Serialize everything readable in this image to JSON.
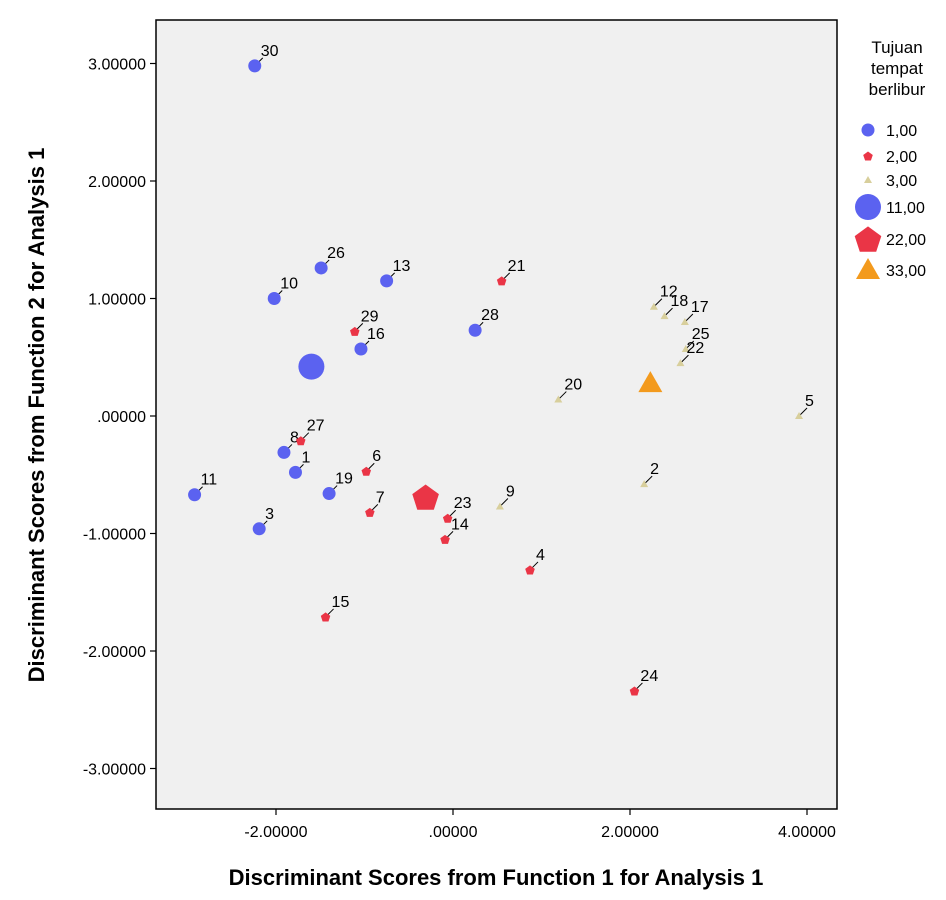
{
  "chart_data": {
    "type": "scatter",
    "xlabel": "Discriminant Scores from Function 1 for Analysis 1",
    "ylabel": "Discriminant Scores from Function 2 for Analysis 1",
    "xlim": [
      -3.4,
      4.3
    ],
    "ylim": [
      -3.3,
      3.4
    ],
    "xticks": [
      -2,
      0,
      2,
      4
    ],
    "xtick_labels": [
      "-2.00000",
      ".00000",
      "2.00000",
      "4.00000"
    ],
    "yticks": [
      3,
      2,
      1,
      0,
      -1,
      -2,
      -3
    ],
    "ytick_labels": [
      "3.00000",
      "2.00000",
      "1.00000",
      ".00000",
      "-1.00000",
      "-2.00000",
      "-3.00000"
    ],
    "legend": {
      "title": [
        "Tujuan",
        "tempat",
        "berlibur"
      ],
      "position": "right",
      "entries": [
        {
          "label": "1,00",
          "shape": "circle",
          "size": "small",
          "color": "#5b62f0"
        },
        {
          "label": "2,00",
          "shape": "pentagon",
          "size": "small",
          "color": "#ea3546"
        },
        {
          "label": "3,00",
          "shape": "triangle",
          "size": "small",
          "color": "#d8cf9c"
        },
        {
          "label": "11,00",
          "shape": "circle",
          "size": "large",
          "color": "#5b62f0"
        },
        {
          "label": "22,00",
          "shape": "pentagon",
          "size": "large",
          "color": "#ea3546"
        },
        {
          "label": "33,00",
          "shape": "triangle",
          "size": "large",
          "color": "#f39a1d"
        }
      ]
    },
    "series": [
      {
        "name": "1,00",
        "shape": "circle",
        "color": "#5b62f0",
        "points": [
          {
            "id": "30",
            "x": -2.24,
            "y": 2.98
          },
          {
            "id": "26",
            "x": -1.49,
            "y": 1.26
          },
          {
            "id": "10",
            "x": -2.02,
            "y": 1.0
          },
          {
            "id": "13",
            "x": -0.75,
            "y": 1.15
          },
          {
            "id": "16",
            "x": -1.04,
            "y": 0.57
          },
          {
            "id": "28",
            "x": 0.25,
            "y": 0.73
          },
          {
            "id": "8",
            "x": -1.91,
            "y": -0.31
          },
          {
            "id": "1",
            "x": -1.78,
            "y": -0.48
          },
          {
            "id": "19",
            "x": -1.4,
            "y": -0.66
          },
          {
            "id": "11",
            "x": -2.92,
            "y": -0.67
          },
          {
            "id": "3",
            "x": -2.19,
            "y": -0.96
          }
        ]
      },
      {
        "name": "2,00",
        "shape": "pentagon",
        "color": "#ea3546",
        "points": [
          {
            "id": "21",
            "x": 0.55,
            "y": 1.15
          },
          {
            "id": "29",
            "x": -1.11,
            "y": 0.72
          },
          {
            "id": "27",
            "x": -1.72,
            "y": -0.21
          },
          {
            "id": "6",
            "x": -0.98,
            "y": -0.47
          },
          {
            "id": "7",
            "x": -0.94,
            "y": -0.82
          },
          {
            "id": "23",
            "x": -0.06,
            "y": -0.87
          },
          {
            "id": "14",
            "x": -0.09,
            "y": -1.05
          },
          {
            "id": "4",
            "x": 0.87,
            "y": -1.31
          },
          {
            "id": "15",
            "x": -1.44,
            "y": -1.71
          },
          {
            "id": "24",
            "x": 2.05,
            "y": -2.34
          }
        ]
      },
      {
        "name": "3,00",
        "shape": "triangle",
        "color": "#d8cf9c",
        "points": [
          {
            "id": "12",
            "x": 2.27,
            "y": 0.93
          },
          {
            "id": "18",
            "x": 2.39,
            "y": 0.85
          },
          {
            "id": "17",
            "x": 2.62,
            "y": 0.8
          },
          {
            "id": "25",
            "x": 2.63,
            "y": 0.57
          },
          {
            "id": "22",
            "x": 2.57,
            "y": 0.45
          },
          {
            "id": "20",
            "x": 1.19,
            "y": 0.14
          },
          {
            "id": "5",
            "x": 3.91,
            "y": 0.0
          },
          {
            "id": "2",
            "x": 2.16,
            "y": -0.58
          },
          {
            "id": "9",
            "x": 0.53,
            "y": -0.77
          }
        ]
      }
    ],
    "centroids": [
      {
        "name": "11,00",
        "shape": "circle",
        "color": "#5b62f0",
        "x": -1.6,
        "y": 0.42
      },
      {
        "name": "22,00",
        "shape": "pentagon",
        "color": "#ea3546",
        "x": -0.31,
        "y": -0.69
      },
      {
        "name": "33,00",
        "shape": "triangle",
        "color": "#f39a1d",
        "x": 2.23,
        "y": 0.28
      }
    ]
  }
}
